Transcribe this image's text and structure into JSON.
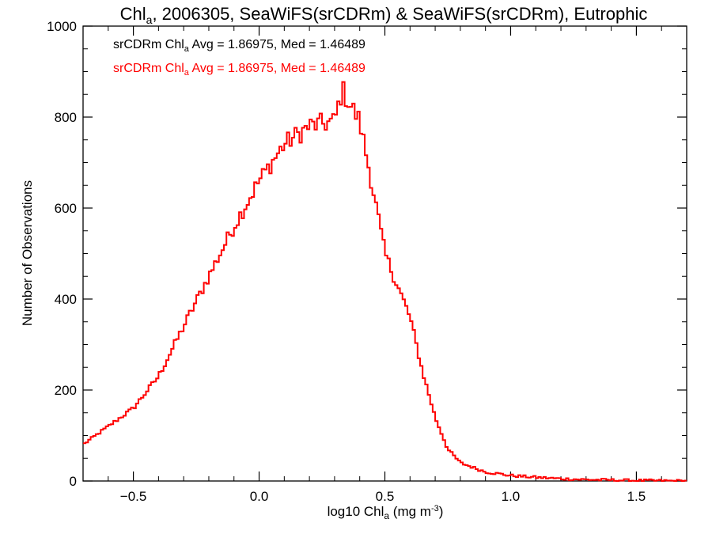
{
  "chart_data": {
    "type": "line",
    "step": true,
    "title_main": "Chl",
    "title_sub": "a",
    "title_rest": ", 2006305, SeaWiFS(srCDRm) & SeaWiFS(srCDRm), Eutrophic",
    "xlabel_main": "log10 Chl",
    "xlabel_sub": "a",
    "xlabel_rest": " (mg m",
    "xlabel_sup": "-3",
    "xlabel_close": ")",
    "ylabel": "Number of Observations",
    "xlim": [
      -0.7,
      1.7
    ],
    "ylim": [
      0,
      1000
    ],
    "xticks": [
      -0.5,
      0.0,
      0.5,
      1.0,
      1.5
    ],
    "xtick_labels": [
      "−0.5",
      "0.0",
      "0.5",
      "1.0",
      "1.5"
    ],
    "yticks": [
      0,
      200,
      400,
      600,
      800,
      1000
    ],
    "ytick_labels": [
      "0",
      "200",
      "400",
      "600",
      "800",
      "1000"
    ],
    "grid": false,
    "legend_position": "top-left",
    "legend": [
      {
        "prefix": "srCDRm Chl",
        "sub": "a",
        "text": " Avg = 1.86975, Med = 1.46489",
        "color": "#000000"
      },
      {
        "prefix": "srCDRm Chl",
        "sub": "a",
        "text": " Avg = 1.86975, Med = 1.46489",
        "color": "#ff0000"
      }
    ],
    "series": [
      {
        "color": "#ff0000",
        "x": [
          -0.7,
          -0.6,
          -0.5,
          -0.4,
          -0.3,
          -0.2,
          -0.1,
          0.0,
          0.1,
          0.2,
          0.3,
          0.33,
          0.4,
          0.45,
          0.5,
          0.55,
          0.6,
          0.65,
          0.7,
          0.75,
          0.8,
          0.9,
          1.0,
          1.1,
          1.2,
          1.3,
          1.5,
          1.7
        ],
        "y": [
          80,
          120,
          160,
          230,
          340,
          450,
          560,
          660,
          740,
          780,
          790,
          860,
          790,
          650,
          500,
          430,
          360,
          240,
          140,
          70,
          40,
          20,
          12,
          8,
          5,
          3,
          1,
          0
        ]
      }
    ]
  }
}
